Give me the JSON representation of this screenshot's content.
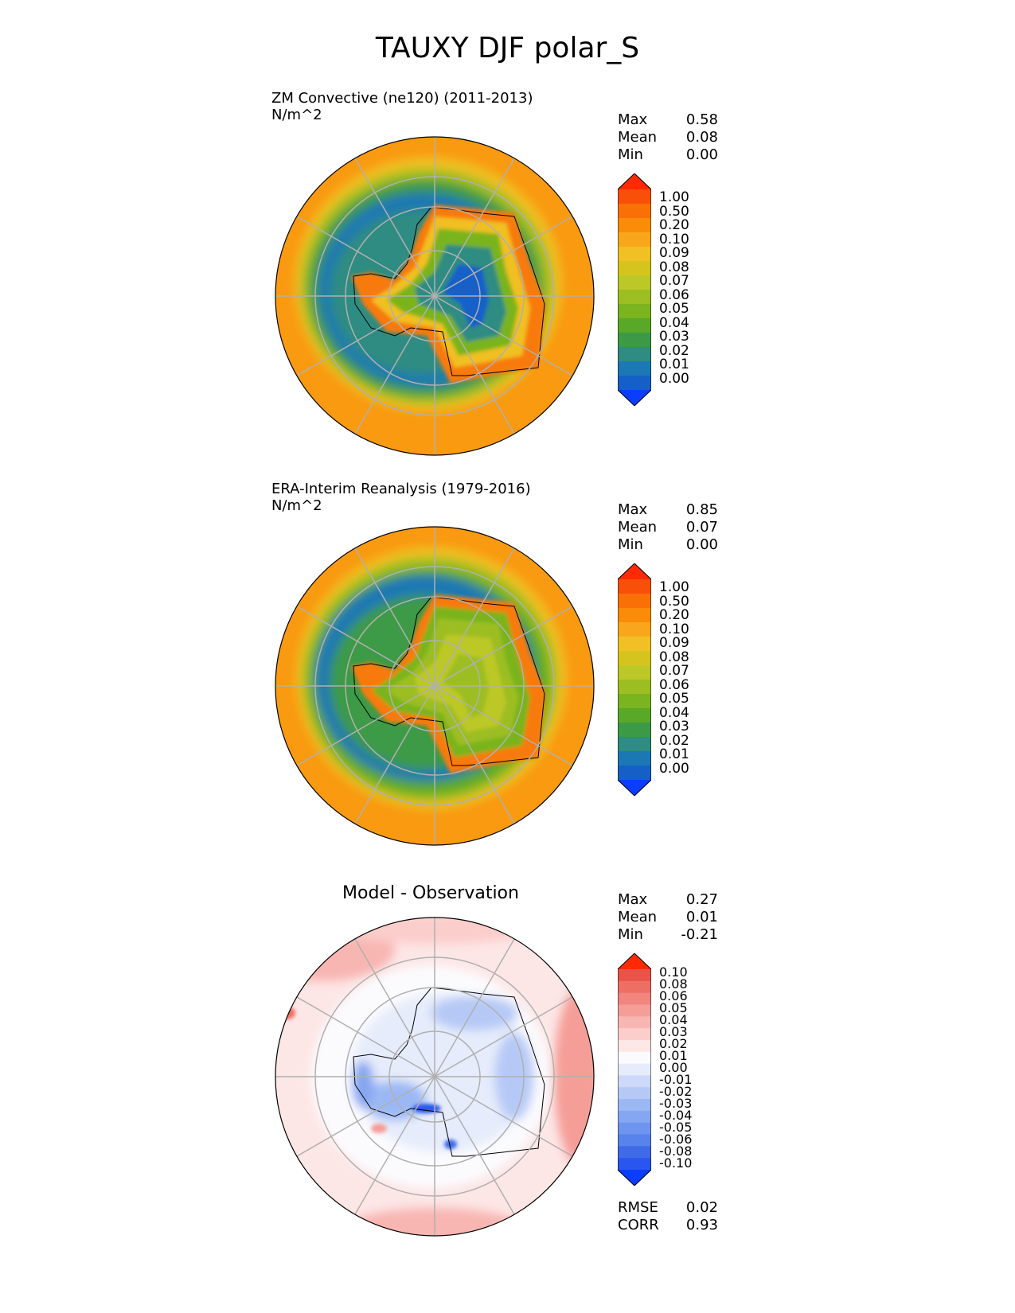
{
  "title": "TAUXY DJF polar_S",
  "colors": {
    "tauxy_levels": [
      "#0a3dff",
      "#1560c8",
      "#1b78b4",
      "#2e8c82",
      "#3c9a46",
      "#5aa828",
      "#7ab41e",
      "#9dbe22",
      "#bcc828",
      "#d6c41e",
      "#f0c024",
      "#f9a61c",
      "#fa8c0a",
      "#f87006",
      "#f85008",
      "#ff2a04"
    ],
    "diff_levels": [
      "#0a3dff",
      "#2a56f0",
      "#3f6ae8",
      "#5882ec",
      "#6d94ee",
      "#85a6f0",
      "#9cb8f4",
      "#b6c9f6",
      "#cdd9f9",
      "#e6ecfb",
      "#fbfbfe",
      "#fde6e6",
      "#fbcdcb",
      "#f8b6b2",
      "#f59e98",
      "#f2857e",
      "#ee6e64",
      "#ea5448",
      "#ff2a04"
    ]
  },
  "panels": [
    {
      "title": "ZM Convective (ne120) (2011-2013)",
      "units": "N/m^2",
      "stats": [
        {
          "label": "Max",
          "value": "0.58"
        },
        {
          "label": "Mean",
          "value": "0.08"
        },
        {
          "label": "Min",
          "value": "0.00"
        }
      ],
      "colorbar_labels": [
        "1.00",
        "0.50",
        "0.20",
        "0.10",
        "0.09",
        "0.08",
        "0.07",
        "0.06",
        "0.05",
        "0.04",
        "0.03",
        "0.02",
        "0.01",
        "0.00"
      ]
    },
    {
      "title": "ERA-Interim Reanalysis (1979-2016)",
      "units": "N/m^2",
      "stats": [
        {
          "label": "Max",
          "value": "0.85"
        },
        {
          "label": "Mean",
          "value": "0.07"
        },
        {
          "label": "Min",
          "value": "0.00"
        }
      ],
      "colorbar_labels": [
        "1.00",
        "0.50",
        "0.20",
        "0.10",
        "0.09",
        "0.08",
        "0.07",
        "0.06",
        "0.05",
        "0.04",
        "0.03",
        "0.02",
        "0.01",
        "0.00"
      ]
    },
    {
      "title": "Model - Observation",
      "stats": [
        {
          "label": "Max",
          "value": "0.27"
        },
        {
          "label": "Mean",
          "value": "0.01"
        },
        {
          "label": "Min",
          "value": "-0.21"
        }
      ],
      "colorbar_labels": [
        "0.10",
        "0.08",
        "0.06",
        "0.05",
        "0.04",
        "0.03",
        "0.02",
        "0.01",
        "0.00",
        "-0.01",
        "-0.02",
        "-0.03",
        "-0.04",
        "-0.05",
        "-0.06",
        "-0.08",
        "-0.10"
      ],
      "metrics": [
        {
          "label": "RMSE",
          "value": "0.02"
        },
        {
          "label": "CORR",
          "value": "0.93"
        }
      ]
    }
  ],
  "chart_data": {
    "type": "heatmap",
    "title": "TAUXY DJF polar_S",
    "projection": "south polar stereographic",
    "panels": [
      {
        "title": "ZM Convective (ne120) (2011-2013)",
        "units": "N/m^2",
        "max": 0.58,
        "mean": 0.08,
        "min": 0.0,
        "levels": [
          0.0,
          0.01,
          0.02,
          0.03,
          0.04,
          0.05,
          0.06,
          0.07,
          0.08,
          0.09,
          0.1,
          0.2,
          0.5,
          1.0
        ]
      },
      {
        "title": "ERA-Interim Reanalysis (1979-2016)",
        "units": "N/m^2",
        "max": 0.85,
        "mean": 0.07,
        "min": 0.0,
        "levels": [
          0.0,
          0.01,
          0.02,
          0.03,
          0.04,
          0.05,
          0.06,
          0.07,
          0.08,
          0.09,
          0.1,
          0.2,
          0.5,
          1.0
        ]
      },
      {
        "title": "Model - Observation",
        "max": 0.27,
        "mean": 0.01,
        "min": -0.21,
        "rmse": 0.02,
        "corr": 0.93,
        "levels": [
          -0.1,
          -0.08,
          -0.06,
          -0.05,
          -0.04,
          -0.03,
          -0.02,
          -0.01,
          0.0,
          0.01,
          0.02,
          0.03,
          0.04,
          0.05,
          0.06,
          0.08,
          0.1
        ]
      }
    ]
  }
}
